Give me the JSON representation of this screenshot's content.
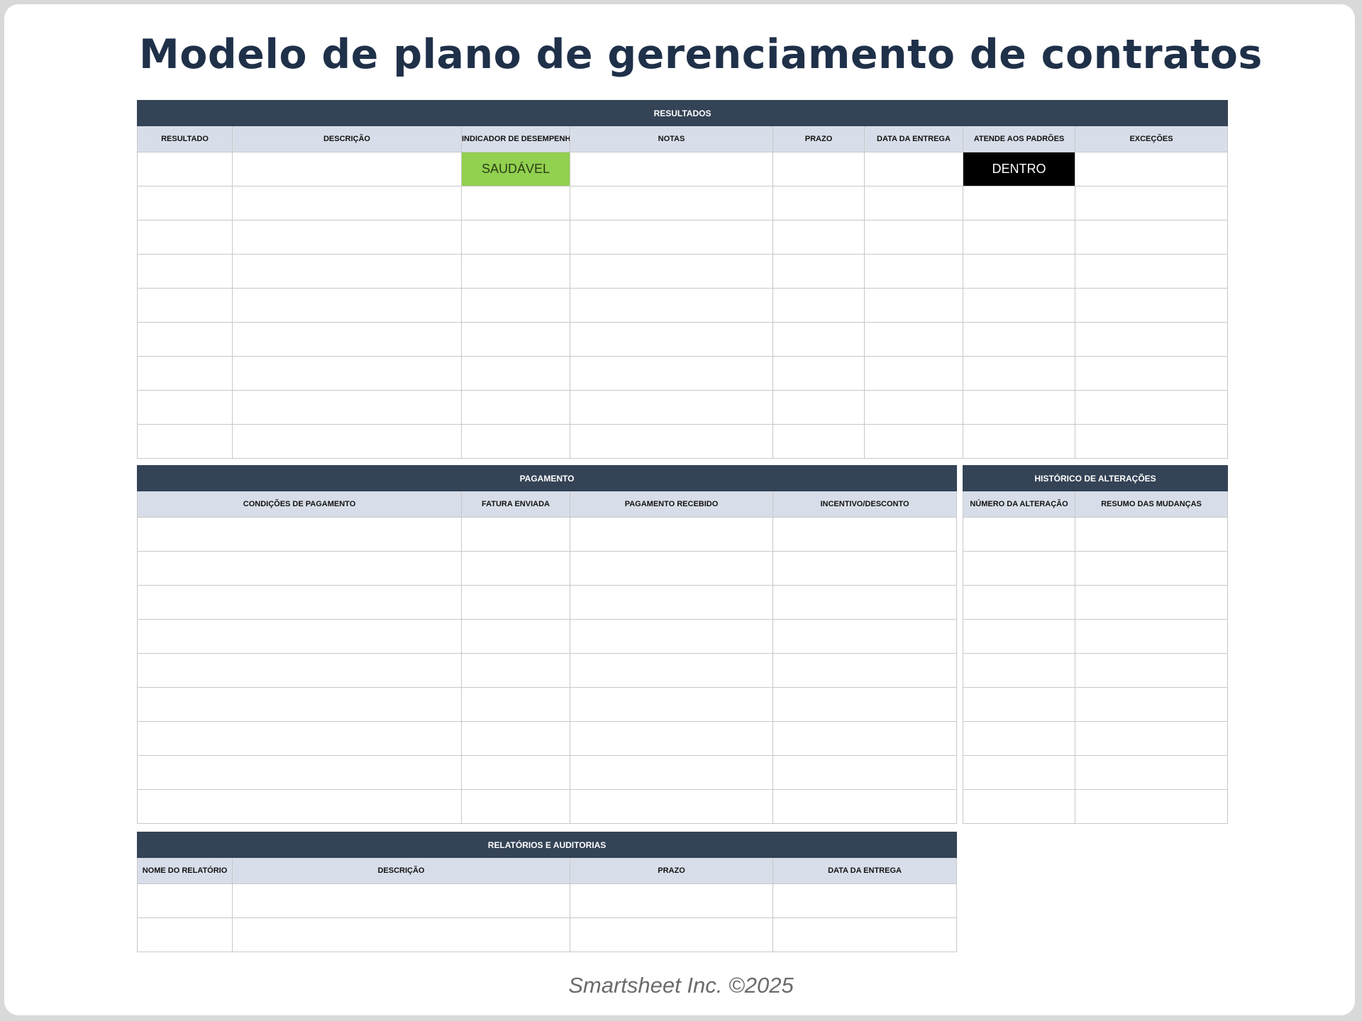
{
  "title": "Modelo de plano de gerenciamento de contratos",
  "tables": [
    {
      "id": "resultados",
      "section": "RESULTADOS",
      "columns": [
        "RESULTADO",
        "DESCRIÇÃO",
        "INDICADOR DE DESEMPENHO",
        "NOTAS",
        "PRAZO",
        "DATA DA ENTREGA",
        "ATENDE AOS PADRÕES",
        "EXCEÇÕES"
      ],
      "rows": [
        [
          "",
          "",
          "SAUDÁVEL",
          "",
          "",
          "",
          "DENTRO",
          ""
        ],
        [
          "",
          "",
          "",
          "",
          "",
          "",
          "",
          ""
        ],
        [
          "",
          "",
          "",
          "",
          "",
          "",
          "",
          ""
        ],
        [
          "",
          "",
          "",
          "",
          "",
          "",
          "",
          ""
        ],
        [
          "",
          "",
          "",
          "",
          "",
          "",
          "",
          ""
        ],
        [
          "",
          "",
          "",
          "",
          "",
          "",
          "",
          ""
        ],
        [
          "",
          "",
          "",
          "",
          "",
          "",
          "",
          ""
        ],
        [
          "",
          "",
          "",
          "",
          "",
          "",
          "",
          ""
        ],
        [
          "",
          "",
          "",
          "",
          "",
          "",
          "",
          ""
        ]
      ]
    },
    {
      "id": "pagamento",
      "section": "PAGAMENTO",
      "columns": [
        "CONDIÇÕES DE PAGAMENTO",
        "FATURA ENVIADA",
        "PAGAMENTO RECEBIDO",
        "INCENTIVO/DESCONTO"
      ],
      "rows": [
        [
          "",
          "",
          "",
          ""
        ],
        [
          "",
          "",
          "",
          ""
        ],
        [
          "",
          "",
          "",
          ""
        ],
        [
          "",
          "",
          "",
          ""
        ],
        [
          "",
          "",
          "",
          ""
        ],
        [
          "",
          "",
          "",
          ""
        ],
        [
          "",
          "",
          "",
          ""
        ],
        [
          "",
          "",
          "",
          ""
        ],
        [
          "",
          "",
          "",
          ""
        ]
      ]
    },
    {
      "id": "historico",
      "section": "HISTÓRICO DE ALTERAÇÕES",
      "columns": [
        "NÚMERO DA ALTERAÇÃO",
        "RESUMO DAS MUDANÇAS"
      ],
      "rows": [
        [
          "",
          ""
        ],
        [
          "",
          ""
        ],
        [
          "",
          ""
        ],
        [
          "",
          ""
        ],
        [
          "",
          ""
        ],
        [
          "",
          ""
        ],
        [
          "",
          ""
        ],
        [
          "",
          ""
        ],
        [
          "",
          ""
        ]
      ]
    },
    {
      "id": "relatorios",
      "section": "RELATÓRIOS E AUDITORIAS",
      "columns": [
        "NOME DO RELATÓRIO",
        "DESCRIÇÃO",
        "PRAZO",
        "DATA DA ENTREGA"
      ],
      "rows": [
        [
          "",
          "",
          "",
          ""
        ],
        [
          "",
          "",
          "",
          ""
        ]
      ]
    }
  ],
  "status_colors": {
    "SAUDÁVEL": "#92d050",
    "DENTRO": "#000000"
  },
  "footer": "Smartsheet Inc. ©2025"
}
